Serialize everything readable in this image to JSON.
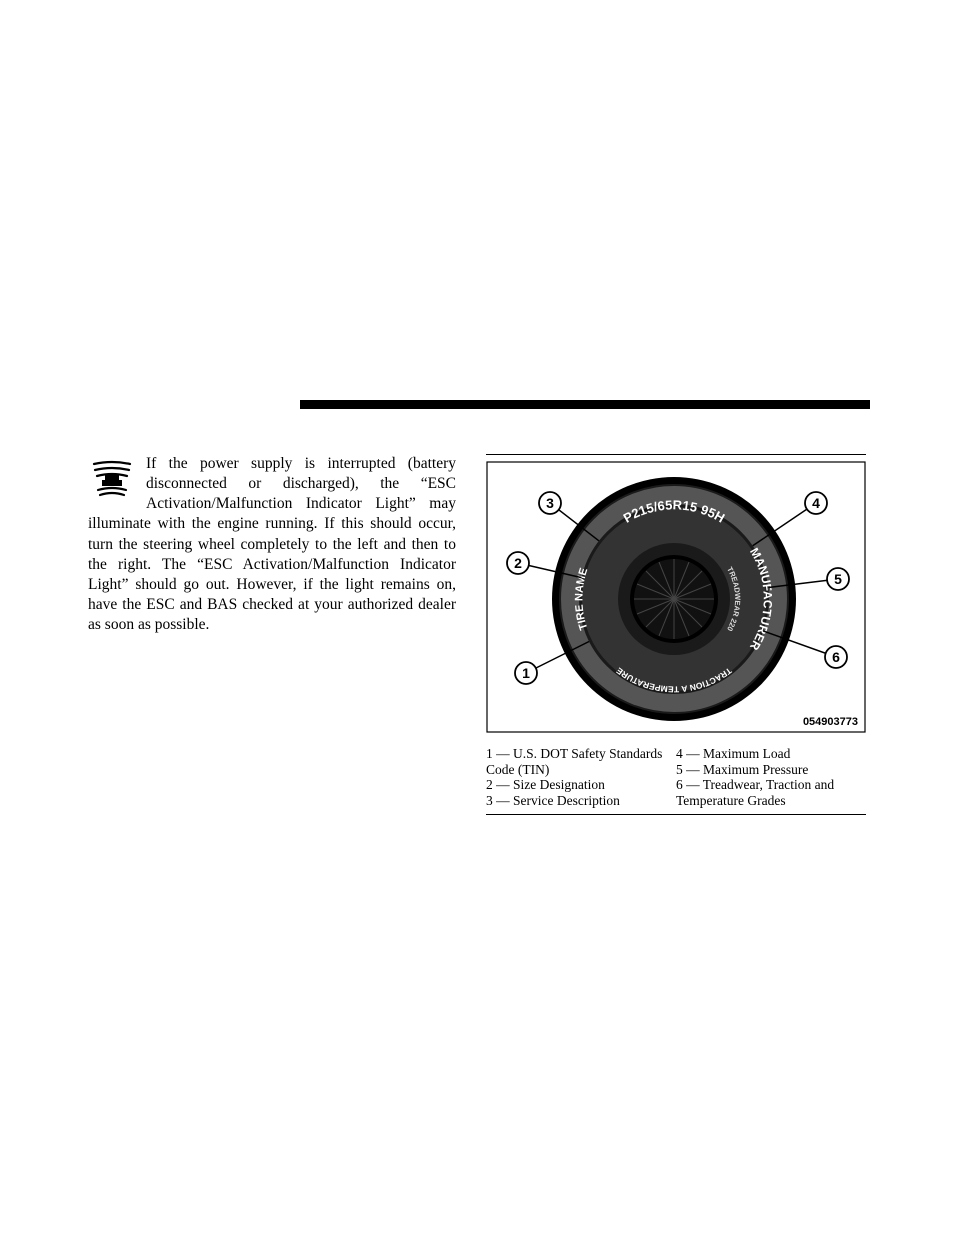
{
  "colors": {
    "background": "#ffffff",
    "text": "#000000",
    "divider": "#000000"
  },
  "typography": {
    "body_font_family": "Palatino, serif",
    "body_font_size_pt": 11.5,
    "legend_font_size_pt": 10
  },
  "body_paragraph": "If the power supply is interrupted (battery disconnected or discharged), the “ESC Activation/Malfunction Indicator Light” may illuminate with the engine running. If this should occur, turn the steering wheel completely to the left and then to the right. The “ESC Activation/Malfunction Indicator Light” should go out. However, if the light remains on, have the ESC and BAS checked at your authorized dealer as soon as possible.",
  "tire_figure": {
    "type": "diagram",
    "image_code": "054903773",
    "sidewall_text_top": "P215/65R15 95H",
    "sidewall_text_right": "MANUFACTURER",
    "sidewall_text_bottom": "TRACTION A TEMPERATURE",
    "sidewall_text_left": "TIRE NAME",
    "sidewall_inner_text": "TREADWEAR 220",
    "callouts": [
      {
        "num": "1",
        "angle_deg": 200
      },
      {
        "num": "2",
        "angle_deg": 155
      },
      {
        "num": "3",
        "angle_deg": 120
      },
      {
        "num": "4",
        "angle_deg": 55
      },
      {
        "num": "5",
        "angle_deg": 15
      },
      {
        "num": "6",
        "angle_deg": 340
      }
    ],
    "legend": {
      "left_col": [
        "1 — U.S. DOT Safety Standards Code (TIN)",
        "2 — Size Designation",
        "3 — Service Description"
      ],
      "right_col": [
        "4 — Maximum Load",
        "",
        "5 — Maximum Pressure",
        "6 — Treadwear, Traction and Temperature Grades"
      ]
    }
  }
}
